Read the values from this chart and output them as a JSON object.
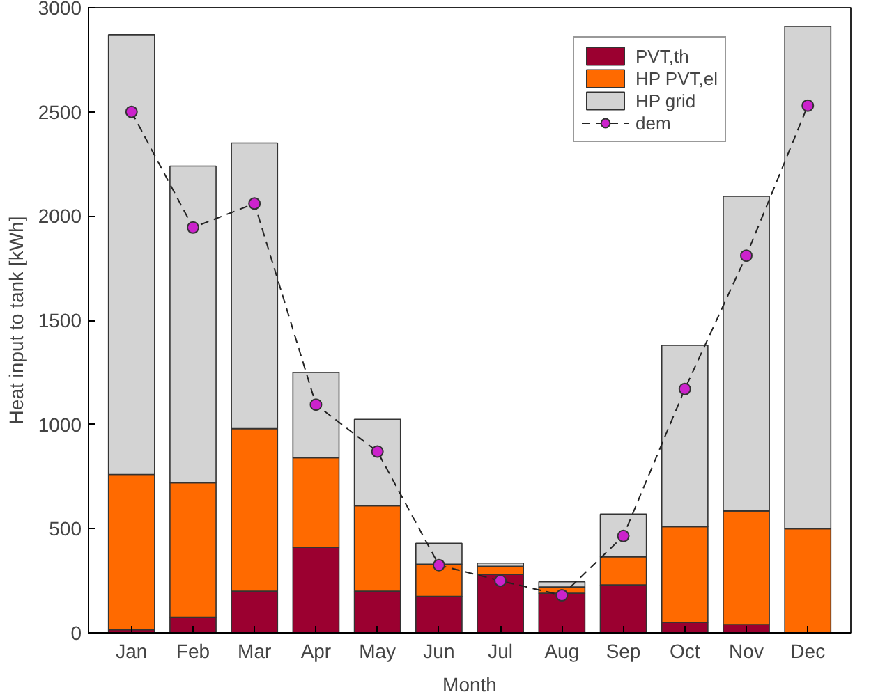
{
  "chart_data": {
    "type": "bar",
    "stacked": true,
    "xlabel": "Month",
    "ylabel": "Heat input to tank [kWh]",
    "categories": [
      "Jan",
      "Feb",
      "Mar",
      "Apr",
      "May",
      "Jun",
      "Jul",
      "Aug",
      "Sep",
      "Oct",
      "Nov",
      "Dec"
    ],
    "ylim": [
      0,
      3000
    ],
    "yticks": [
      0,
      500,
      1000,
      1500,
      2000,
      2500,
      3000
    ],
    "grid": false,
    "legend": "top right",
    "series": [
      {
        "name": "PVT,th",
        "color": "#9b0030",
        "values": [
          15,
          75,
          200,
          410,
          200,
          175,
          280,
          190,
          230,
          50,
          40,
          0
        ]
      },
      {
        "name": "HP PVT,el",
        "color": "#ff6a00",
        "values": [
          745,
          645,
          780,
          430,
          410,
          155,
          40,
          30,
          135,
          460,
          545,
          500
        ]
      },
      {
        "name": "HP grid",
        "color": "#d3d3d3",
        "values": [
          2110,
          1520,
          1370,
          410,
          415,
          100,
          15,
          25,
          205,
          870,
          1510,
          2410
        ]
      },
      {
        "name": "dem",
        "type": "line",
        "color": "#cc22cc",
        "marker": "circle",
        "line_style": "dashed",
        "values": [
          2500,
          1945,
          2060,
          1095,
          870,
          325,
          250,
          180,
          465,
          1170,
          1810,
          2530
        ]
      }
    ]
  }
}
